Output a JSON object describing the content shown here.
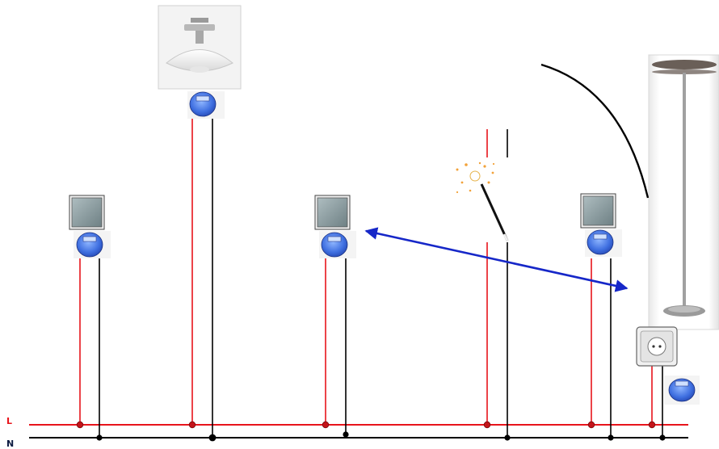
{
  "bus": {
    "live_label": "L",
    "neutral_label": "N",
    "live_color": "#e8141b",
    "neutral_color": "#000000"
  },
  "link_color": "#1627c8",
  "icons": {
    "switch": "wall-switch-icon",
    "meter": "blue-meter-module-icon",
    "ceiling_lamp": "ceiling-lamp-icon",
    "floor_lamp": "floor-lamp-icon",
    "socket": "wall-socket-icon",
    "wand": "magic-wand-icon"
  }
}
